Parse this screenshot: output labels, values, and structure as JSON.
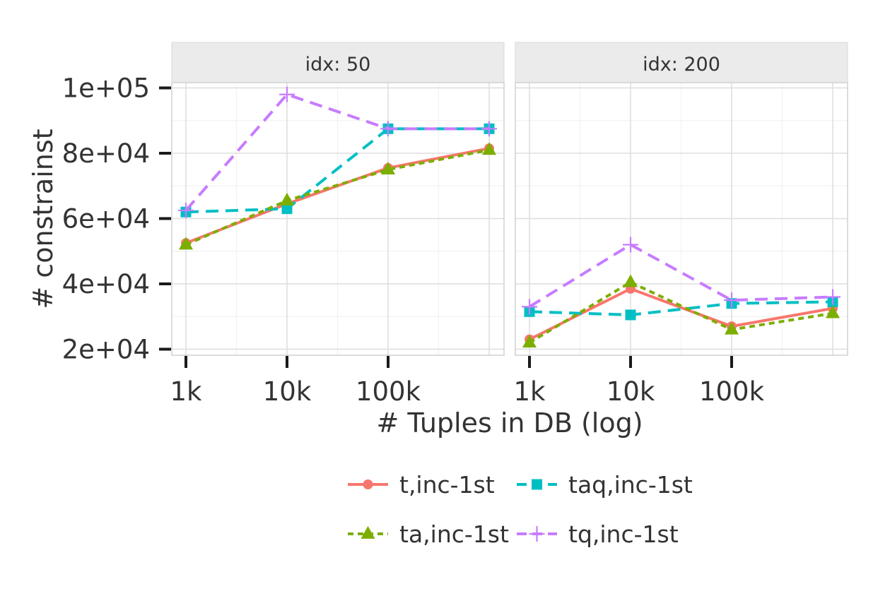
{
  "chart_data": {
    "type": "line",
    "xlabel": "# Tuples in DB (log)",
    "ylabel": "# constrainst",
    "x_scale": "log",
    "x": [
      1000,
      10000,
      100000,
      1000000
    ],
    "xlim": [
      1000,
      1000000
    ],
    "xticks": [
      1000,
      10000,
      100000
    ],
    "xtick_labels": [
      "1k",
      "10k",
      "100k"
    ],
    "ylim": [
      20000,
      100000
    ],
    "yticks": [
      20000,
      40000,
      60000,
      80000,
      100000
    ],
    "ytick_labels": [
      "2e+04",
      "4e+04",
      "6e+04",
      "8e+04",
      "1e+05"
    ],
    "grid": true,
    "legend_position": "bottom",
    "series_styles": [
      {
        "name": "t,inc-1st",
        "color": "#f8766d",
        "dash": "solid",
        "marker": "circle"
      },
      {
        "name": "taq,inc-1st",
        "color": "#00bfc4",
        "dash": "dashed",
        "marker": "square"
      },
      {
        "name": "ta,inc-1st",
        "color": "#7cae00",
        "dash": "dotted",
        "marker": "triangle"
      },
      {
        "name": "tq,inc-1st",
        "color": "#c77cff",
        "dash": "dashed",
        "marker": "plus"
      }
    ],
    "panels": [
      {
        "strip_label": "idx: 50",
        "series": [
          {
            "name": "t,inc-1st",
            "values": [
              52500,
              64500,
              75500,
              81500
            ]
          },
          {
            "name": "taq,inc-1st",
            "values": [
              62000,
              63000,
              87500,
              87500
            ]
          },
          {
            "name": "ta,inc-1st",
            "values": [
              52000,
              65500,
              75000,
              81000
            ]
          },
          {
            "name": "tq,inc-1st",
            "values": [
              62500,
              98000,
              87500,
              87500
            ]
          }
        ]
      },
      {
        "strip_label": "idx: 200",
        "series": [
          {
            "name": "t,inc-1st",
            "values": [
              23000,
              38500,
              27000,
              32500
            ]
          },
          {
            "name": "taq,inc-1st",
            "values": [
              31500,
              30500,
              34000,
              34500
            ]
          },
          {
            "name": "ta,inc-1st",
            "values": [
              22000,
              40500,
              26000,
              31000
            ]
          },
          {
            "name": "tq,inc-1st",
            "values": [
              33000,
              52000,
              35000,
              36000
            ]
          }
        ]
      }
    ]
  }
}
